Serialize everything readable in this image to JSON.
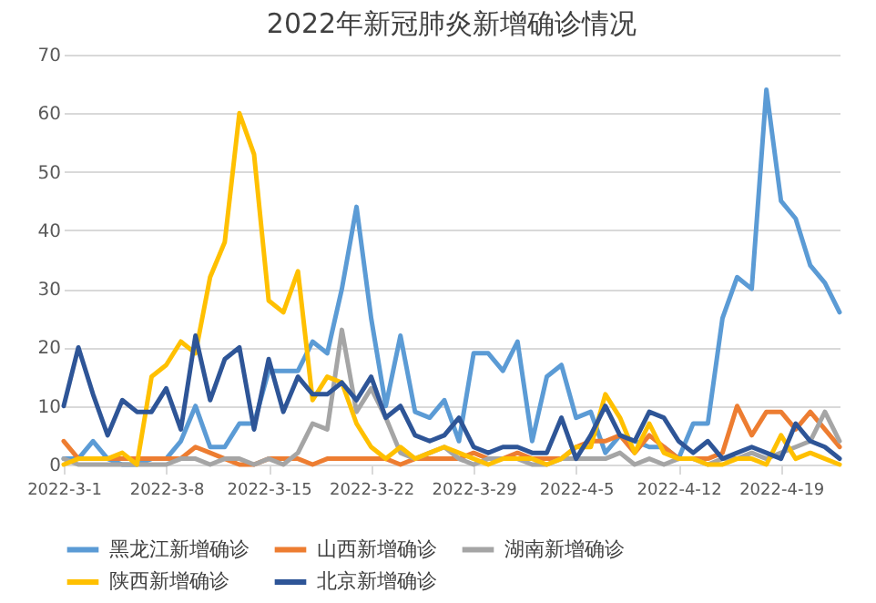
{
  "chart_data": {
    "type": "line",
    "title": "2022年新冠肺炎新增确诊情况",
    "x": [
      "2022-03-01",
      "2022-03-02",
      "2022-03-03",
      "2022-03-04",
      "2022-03-05",
      "2022-03-06",
      "2022-03-07",
      "2022-03-08",
      "2022-03-09",
      "2022-03-10",
      "2022-03-11",
      "2022-03-12",
      "2022-03-13",
      "2022-03-14",
      "2022-03-15",
      "2022-03-16",
      "2022-03-17",
      "2022-03-18",
      "2022-03-19",
      "2022-03-20",
      "2022-03-21",
      "2022-03-22",
      "2022-03-23",
      "2022-03-24",
      "2022-03-25",
      "2022-03-26",
      "2022-03-27",
      "2022-03-28",
      "2022-03-29",
      "2022-03-30",
      "2022-03-31",
      "2022-04-01",
      "2022-04-02",
      "2022-04-03",
      "2022-04-04",
      "2022-04-05",
      "2022-04-06",
      "2022-04-07",
      "2022-04-08",
      "2022-04-09",
      "2022-04-10",
      "2022-04-11",
      "2022-04-12",
      "2022-04-13",
      "2022-04-14",
      "2022-04-15",
      "2022-04-16",
      "2022-04-17",
      "2022-04-18",
      "2022-04-19",
      "2022-04-20",
      "2022-04-21",
      "2022-04-22",
      "2022-04-23"
    ],
    "series": [
      {
        "name": "黑龙江新增确诊",
        "color": "#5b9bd5",
        "values": [
          1,
          1,
          4,
          1,
          0,
          0,
          1,
          1,
          4,
          10,
          3,
          3,
          7,
          7,
          16,
          16,
          16,
          21,
          19,
          30,
          44,
          25,
          10,
          22,
          9,
          8,
          11,
          4,
          19,
          19,
          16,
          21,
          4,
          15,
          17,
          8,
          9,
          2,
          5,
          4,
          3,
          3,
          1,
          7,
          7,
          25,
          32,
          30,
          64,
          45,
          42,
          34,
          31,
          26
        ]
      },
      {
        "name": "山西新增确诊",
        "color": "#ed7d31",
        "values": [
          4,
          1,
          1,
          1,
          1,
          1,
          1,
          1,
          1,
          3,
          2,
          1,
          0,
          0,
          1,
          1,
          1,
          0,
          1,
          1,
          1,
          1,
          1,
          0,
          1,
          1,
          1,
          1,
          2,
          1,
          1,
          2,
          1,
          1,
          1,
          3,
          4,
          4,
          5,
          2,
          5,
          3,
          1,
          1,
          1,
          2,
          10,
          5,
          9,
          9,
          6,
          9,
          6,
          3
        ]
      },
      {
        "name": "湖南新增确诊",
        "color": "#a5a5a5",
        "values": [
          1,
          0,
          0,
          0,
          0,
          0,
          0,
          0,
          1,
          1,
          0,
          1,
          1,
          0,
          1,
          0,
          2,
          7,
          6,
          23,
          9,
          13,
          8,
          2,
          1,
          2,
          3,
          1,
          0,
          1,
          1,
          1,
          0,
          0,
          1,
          1,
          1,
          1,
          2,
          0,
          1,
          0,
          1,
          1,
          0,
          1,
          1,
          2,
          1,
          2,
          3,
          4,
          9,
          4
        ]
      },
      {
        "name": "陕西新增确诊",
        "color": "#ffc000",
        "values": [
          0,
          1,
          1,
          1,
          2,
          0,
          15,
          17,
          21,
          19,
          32,
          38,
          60,
          53,
          28,
          26,
          33,
          11,
          15,
          14,
          7,
          3,
          1,
          3,
          1,
          2,
          3,
          2,
          1,
          0,
          1,
          1,
          1,
          0,
          1,
          3,
          3,
          12,
          8,
          2,
          7,
          2,
          1,
          1,
          0,
          0,
          1,
          1,
          0,
          5,
          1,
          2,
          1,
          0
        ]
      },
      {
        "name": "北京新增确诊",
        "color": "#2e5597",
        "values": [
          10,
          20,
          12,
          5,
          11,
          9,
          9,
          13,
          6,
          22,
          11,
          18,
          20,
          6,
          18,
          9,
          15,
          12,
          12,
          14,
          11,
          15,
          8,
          10,
          5,
          4,
          5,
          8,
          3,
          2,
          3,
          3,
          2,
          2,
          8,
          1,
          5,
          10,
          5,
          4,
          9,
          8,
          4,
          2,
          4,
          1,
          2,
          3,
          2,
          1,
          7,
          4,
          3,
          1
        ]
      }
    ],
    "xlim": [
      "2022-03-01",
      "2022-04-23"
    ],
    "xticks": [
      {
        "value": "2022-03-01",
        "label": "2022-3-1"
      },
      {
        "value": "2022-03-08",
        "label": "2022-3-8"
      },
      {
        "value": "2022-03-15",
        "label": "2022-3-15"
      },
      {
        "value": "2022-03-22",
        "label": "2022-3-22"
      },
      {
        "value": "2022-03-29",
        "label": "2022-3-29"
      },
      {
        "value": "2022-04-05",
        "label": "2022-4-5"
      },
      {
        "value": "2022-04-12",
        "label": "2022-4-12"
      },
      {
        "value": "2022-04-19",
        "label": "2022-4-19"
      }
    ],
    "ylim": [
      0,
      70
    ],
    "yticks": [
      0,
      10,
      20,
      30,
      40,
      50,
      60,
      70
    ],
    "grid": "y",
    "legend": "bottom"
  }
}
